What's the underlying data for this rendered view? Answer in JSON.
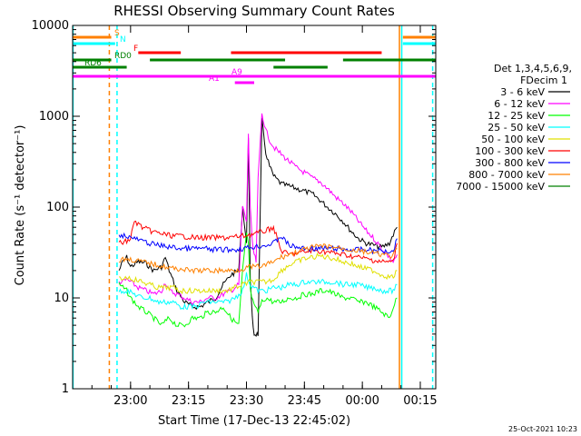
{
  "chart_data": {
    "type": "line",
    "title": "RHESSI Observing Summary Count Rates",
    "xlabel": "Start Time (17-Dec-13 22:45:02)",
    "ylabel": "Count Rate (s⁻¹ detector⁻¹)",
    "y_scale": "log",
    "ylim": [
      1,
      10000
    ],
    "xlim_min": [
      0,
      94
    ],
    "x_ticks": [
      {
        "min": 15,
        "label": "23:00"
      },
      {
        "min": 30,
        "label": "23:15"
      },
      {
        "min": 45,
        "label": "23:30"
      },
      {
        "min": 60,
        "label": "23:45"
      },
      {
        "min": 75,
        "label": "00:00"
      },
      {
        "min": 90,
        "label": "00:15"
      }
    ],
    "y_ticks": [
      {
        "v": 1,
        "label": "1"
      },
      {
        "v": 10,
        "label": "10"
      },
      {
        "v": 100,
        "label": "100"
      },
      {
        "v": 1000,
        "label": "1000"
      },
      {
        "v": 10000,
        "label": "10000"
      }
    ],
    "legend": {
      "header": [
        "Det 1,3,4,5,6,9,",
        "FDecim 1"
      ],
      "placement": "right"
    },
    "series": [
      {
        "name": "3 - 6 keV",
        "color": "#000000",
        "x": [
          12,
          13,
          14,
          15,
          17,
          19,
          21,
          23,
          24,
          25,
          27,
          29,
          31,
          33,
          35,
          37,
          39,
          41,
          43,
          44,
          45,
          45.5,
          46,
          46.5,
          47,
          47.5,
          48,
          49,
          50,
          51,
          52,
          54,
          56,
          58,
          60,
          62,
          64,
          66,
          68,
          70,
          72,
          74,
          76,
          78,
          80,
          82,
          83,
          84
        ],
        "y": [
          20,
          25,
          28,
          22,
          25,
          24,
          20,
          22,
          28,
          20,
          12,
          9,
          8,
          8,
          9,
          10,
          14,
          18,
          20,
          100,
          40,
          600,
          15,
          6,
          4,
          4,
          4,
          900,
          400,
          280,
          220,
          180,
          170,
          160,
          150,
          140,
          120,
          100,
          85,
          70,
          55,
          45,
          40,
          38,
          36,
          40,
          50,
          60
        ]
      },
      {
        "name": "6 - 12 keV",
        "color": "#ff00ff",
        "x": [
          12,
          13,
          14,
          15,
          17,
          19,
          21,
          23,
          24,
          25,
          27,
          29,
          31,
          33,
          35,
          37,
          39,
          41,
          43,
          44,
          45,
          45.5,
          46,
          46.5,
          47,
          47.5,
          48,
          49,
          50,
          51,
          52,
          54,
          56,
          58,
          60,
          62,
          64,
          66,
          68,
          70,
          72,
          74,
          76,
          78,
          80,
          82,
          83,
          84
        ],
        "y": [
          15,
          15,
          16,
          15,
          13,
          12,
          11,
          12,
          15,
          12,
          11,
          10,
          9,
          9,
          10,
          10,
          11,
          12,
          14,
          100,
          70,
          650,
          100,
          40,
          30,
          25,
          200,
          1100,
          700,
          550,
          460,
          380,
          320,
          270,
          240,
          210,
          190,
          160,
          130,
          110,
          90,
          70,
          55,
          45,
          35,
          28,
          25,
          30
        ]
      },
      {
        "name": "12 - 25 keV",
        "color": "#00ff00",
        "x": [
          12,
          13,
          14,
          15,
          17,
          19,
          21,
          23,
          25,
          27,
          29,
          31,
          33,
          35,
          37,
          39,
          41,
          43,
          44,
          45,
          45.5,
          46,
          47,
          48,
          49,
          50,
          52,
          54,
          56,
          58,
          60,
          62,
          64,
          66,
          68,
          70,
          72,
          74,
          76,
          78,
          80,
          82,
          83,
          84
        ],
        "y": [
          14,
          13,
          12,
          10,
          8,
          7,
          6,
          5,
          6,
          5,
          5,
          6,
          6,
          7,
          7,
          8,
          6,
          5,
          20,
          50,
          40,
          12,
          8,
          7,
          9,
          10,
          9,
          9,
          10,
          10,
          11,
          11,
          12,
          12,
          11,
          10,
          10,
          9,
          9,
          8,
          7,
          6,
          8,
          10
        ]
      },
      {
        "name": "25 - 50 keV",
        "color": "#00ffff",
        "x": [
          12,
          14,
          16,
          18,
          20,
          22,
          24,
          26,
          28,
          30,
          32,
          34,
          36,
          38,
          40,
          42,
          44,
          45,
          46,
          48,
          50,
          52,
          54,
          56,
          58,
          60,
          62,
          64,
          66,
          68,
          70,
          72,
          74,
          76,
          78,
          80,
          82,
          83,
          84
        ],
        "y": [
          12,
          12,
          11,
          10,
          10,
          9,
          9,
          9,
          8,
          8,
          8,
          9,
          9,
          9,
          9,
          10,
          12,
          18,
          14,
          12,
          12,
          13,
          13,
          14,
          14,
          15,
          15,
          15,
          15,
          15,
          14,
          14,
          14,
          13,
          13,
          12,
          12,
          12,
          14
        ]
      },
      {
        "name": "50 - 100 keV",
        "color": "#e0e000",
        "x": [
          12,
          14,
          16,
          18,
          20,
          22,
          24,
          26,
          28,
          30,
          32,
          34,
          36,
          38,
          40,
          42,
          44,
          46,
          48,
          50,
          52,
          54,
          56,
          58,
          60,
          62,
          64,
          66,
          68,
          70,
          72,
          74,
          76,
          78,
          80,
          82,
          83,
          84
        ],
        "y": [
          16,
          17,
          16,
          15,
          14,
          13,
          13,
          13,
          12,
          12,
          12,
          12,
          12,
          12,
          12,
          13,
          14,
          15,
          15,
          15,
          16,
          20,
          23,
          25,
          27,
          28,
          29,
          28,
          27,
          25,
          24,
          22,
          21,
          20,
          18,
          17,
          17,
          20
        ]
      },
      {
        "name": "100 - 300 keV",
        "color": "#ff0000",
        "x": [
          12,
          14,
          15,
          16,
          18,
          20,
          22,
          24,
          26,
          28,
          30,
          32,
          34,
          36,
          38,
          40,
          42,
          44,
          46,
          48,
          50,
          52,
          54,
          56,
          58,
          60,
          62,
          64,
          66,
          68,
          70,
          72,
          74,
          76,
          78,
          80,
          82,
          83,
          84
        ],
        "y": [
          40,
          42,
          45,
          70,
          60,
          55,
          52,
          50,
          48,
          48,
          47,
          46,
          46,
          46,
          46,
          46,
          47,
          48,
          50,
          52,
          55,
          60,
          33,
          30,
          31,
          32,
          33,
          33,
          32,
          31,
          30,
          29,
          28,
          27,
          26,
          25,
          25,
          25,
          40
        ]
      },
      {
        "name": "300 - 800 keV",
        "color": "#0000ff",
        "x": [
          12,
          14,
          16,
          18,
          20,
          22,
          24,
          26,
          28,
          30,
          32,
          34,
          36,
          38,
          40,
          42,
          44,
          46,
          48,
          50,
          52,
          54,
          56,
          58,
          60,
          62,
          64,
          66,
          68,
          70,
          72,
          74,
          76,
          78,
          80,
          82,
          83,
          84
        ],
        "y": [
          50,
          48,
          45,
          42,
          40,
          38,
          37,
          36,
          35,
          35,
          35,
          35,
          34,
          34,
          34,
          34,
          35,
          36,
          37,
          38,
          40,
          48,
          38,
          36,
          35,
          35,
          35,
          35,
          35,
          34,
          34,
          34,
          34,
          33,
          33,
          33,
          33,
          45
        ]
      },
      {
        "name": "800 - 7000 keV",
        "color": "#ff8000",
        "x": [
          12,
          14,
          16,
          18,
          20,
          22,
          24,
          26,
          28,
          30,
          32,
          34,
          36,
          38,
          40,
          42,
          44,
          46,
          48,
          50,
          52,
          54,
          56,
          58,
          60,
          62,
          64,
          66,
          68,
          70,
          72,
          74,
          76,
          78,
          80,
          82,
          83,
          84
        ],
        "y": [
          26,
          27,
          26,
          25,
          24,
          23,
          22,
          21,
          21,
          20,
          20,
          20,
          20,
          20,
          20,
          20,
          21,
          22,
          22,
          23,
          25,
          28,
          30,
          32,
          34,
          36,
          37,
          37,
          36,
          35,
          34,
          33,
          32,
          31,
          30,
          29,
          29,
          35
        ]
      },
      {
        "name": "7000 - 15000 keV",
        "color": "#008000",
        "x": [],
        "y": []
      }
    ],
    "flags": [
      {
        "label": "S",
        "color": "#ff8000",
        "segments": [
          [
            0,
            10
          ],
          [
            85.5,
            94
          ]
        ]
      },
      {
        "label": "N",
        "color": "#00ffff",
        "segments": [
          [
            0,
            11
          ],
          [
            85.5,
            94
          ]
        ]
      },
      {
        "label": "F",
        "color": "#ff0000",
        "segments": [
          [
            17,
            28
          ],
          [
            41,
            80
          ]
        ]
      },
      {
        "label": "RD0",
        "color": "#008000",
        "segments": [
          [
            0,
            10
          ],
          [
            20,
            55
          ],
          [
            70,
            94
          ]
        ]
      },
      {
        "label": "RD6",
        "color": "#008000",
        "segments": [
          [
            0,
            14
          ],
          [
            52,
            66
          ]
        ]
      },
      {
        "label": "A9",
        "color": "#ff00ff",
        "segments": [
          [
            0,
            94
          ]
        ]
      },
      {
        "label": "A1",
        "color": "#ff00ff",
        "segments": [
          [
            42,
            47
          ]
        ]
      }
    ],
    "vlines": [
      {
        "min": 0.1,
        "color": "#00ffff",
        "dash": false
      },
      {
        "min": 9.5,
        "color": "#ff8000",
        "dash": true
      },
      {
        "min": 11.5,
        "color": "#00ffff",
        "dash": true
      },
      {
        "min": 84.6,
        "color": "#ff8000",
        "dash": false
      },
      {
        "min": 85.2,
        "color": "#00ffff",
        "dash": false
      },
      {
        "min": 93.2,
        "color": "#00ffff",
        "dash": true
      }
    ],
    "timestamp": "25-Oct-2021 10:23"
  }
}
